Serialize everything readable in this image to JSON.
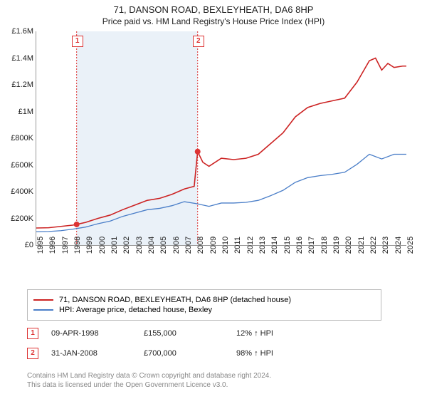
{
  "title": {
    "main": "71, DANSON ROAD, BEXLEYHEATH, DA6 8HP",
    "sub": "Price paid vs. HM Land Registry's House Price Index (HPI)"
  },
  "chart": {
    "type": "line",
    "x_years": [
      1995,
      1996,
      1997,
      1998,
      1999,
      2000,
      2001,
      2002,
      2003,
      2004,
      2005,
      2006,
      2007,
      2008,
      2009,
      2010,
      2011,
      2012,
      2013,
      2014,
      2015,
      2016,
      2017,
      2018,
      2019,
      2020,
      2021,
      2022,
      2023,
      2024,
      2025
    ],
    "x_range": [
      1995,
      2025
    ],
    "y_range": [
      0,
      1600000
    ],
    "y_ticks": [
      0,
      200000,
      400000,
      600000,
      800000,
      1000000,
      1200000,
      1400000,
      1600000
    ],
    "y_tick_labels": [
      "£0",
      "£200K",
      "£400K",
      "£600K",
      "£800K",
      "£1M",
      "£1.2M",
      "£1.4M",
      "£1.6M"
    ],
    "background_color": "#ffffff",
    "shade_color": "#e8f0f7",
    "shade_start_year": 1998.27,
    "shade_end_year": 2008.08,
    "series": {
      "property": {
        "label": "71, DANSON ROAD, BEXLEYHEATH, DA6 8HP (detached house)",
        "color": "#cc2222",
        "width": 1.6,
        "data": [
          [
            1995,
            128000
          ],
          [
            1996,
            130000
          ],
          [
            1997,
            140000
          ],
          [
            1998,
            150000
          ],
          [
            1998.27,
            155000
          ],
          [
            1999,
            170000
          ],
          [
            2000,
            200000
          ],
          [
            2001,
            225000
          ],
          [
            2002,
            265000
          ],
          [
            2003,
            300000
          ],
          [
            2004,
            335000
          ],
          [
            2005,
            350000
          ],
          [
            2006,
            380000
          ],
          [
            2007,
            420000
          ],
          [
            2007.8,
            440000
          ],
          [
            2008.08,
            700000
          ],
          [
            2008.5,
            620000
          ],
          [
            2009,
            590000
          ],
          [
            2010,
            650000
          ],
          [
            2011,
            640000
          ],
          [
            2012,
            650000
          ],
          [
            2013,
            680000
          ],
          [
            2014,
            760000
          ],
          [
            2015,
            840000
          ],
          [
            2016,
            960000
          ],
          [
            2017,
            1030000
          ],
          [
            2018,
            1060000
          ],
          [
            2019,
            1080000
          ],
          [
            2020,
            1100000
          ],
          [
            2021,
            1220000
          ],
          [
            2022,
            1380000
          ],
          [
            2022.5,
            1400000
          ],
          [
            2023,
            1310000
          ],
          [
            2023.5,
            1360000
          ],
          [
            2024,
            1330000
          ],
          [
            2024.7,
            1340000
          ],
          [
            2025,
            1340000
          ]
        ]
      },
      "hpi": {
        "label": "HPI: Average price, detached house, Bexley",
        "color": "#4a7ec8",
        "width": 1.3,
        "data": [
          [
            1995,
            100000
          ],
          [
            1996,
            102000
          ],
          [
            1997,
            108000
          ],
          [
            1998,
            120000
          ],
          [
            1999,
            135000
          ],
          [
            2000,
            160000
          ],
          [
            2001,
            180000
          ],
          [
            2002,
            215000
          ],
          [
            2003,
            240000
          ],
          [
            2004,
            265000
          ],
          [
            2005,
            275000
          ],
          [
            2006,
            295000
          ],
          [
            2007,
            325000
          ],
          [
            2008,
            310000
          ],
          [
            2009,
            290000
          ],
          [
            2010,
            315000
          ],
          [
            2011,
            315000
          ],
          [
            2012,
            320000
          ],
          [
            2013,
            335000
          ],
          [
            2014,
            370000
          ],
          [
            2015,
            410000
          ],
          [
            2016,
            470000
          ],
          [
            2017,
            505000
          ],
          [
            2018,
            520000
          ],
          [
            2019,
            530000
          ],
          [
            2020,
            545000
          ],
          [
            2021,
            605000
          ],
          [
            2022,
            680000
          ],
          [
            2023,
            645000
          ],
          [
            2024,
            680000
          ],
          [
            2025,
            680000
          ]
        ]
      }
    },
    "markers": [
      {
        "n": "1",
        "year": 1998.27,
        "value": 155000
      },
      {
        "n": "2",
        "year": 2008.08,
        "value": 700000
      }
    ]
  },
  "legend": {
    "s1": "71, DANSON ROAD, BEXLEYHEATH, DA6 8HP (detached house)",
    "s2": "HPI: Average price, detached house, Bexley"
  },
  "sales": [
    {
      "n": "1",
      "date": "09-APR-1998",
      "price": "£155,000",
      "delta": "12% ↑ HPI"
    },
    {
      "n": "2",
      "date": "31-JAN-2008",
      "price": "£700,000",
      "delta": "98% ↑ HPI"
    }
  ],
  "footnote": {
    "l1": "Contains HM Land Registry data © Crown copyright and database right 2024.",
    "l2": "This data is licensed under the Open Government Licence v3.0."
  }
}
